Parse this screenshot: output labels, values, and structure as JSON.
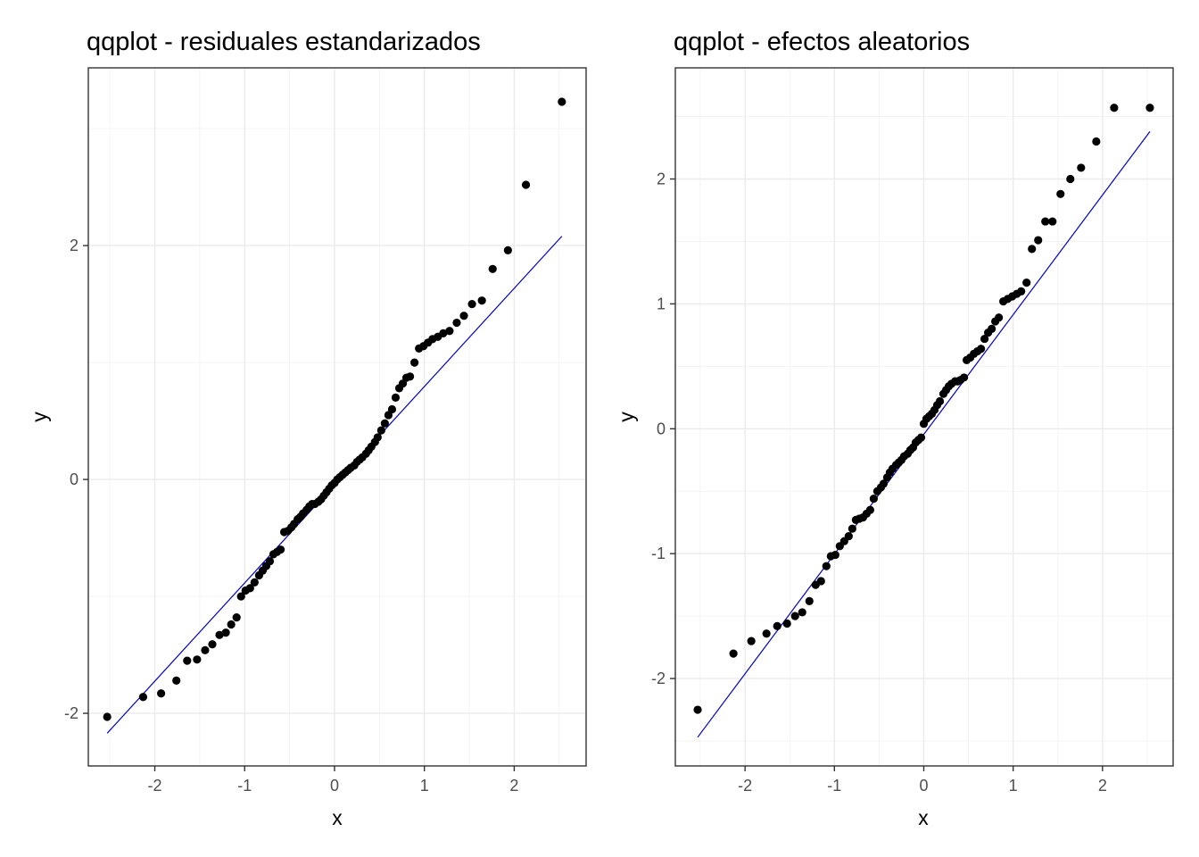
{
  "colors": {
    "point": "#000000",
    "line": "#0000cd"
  },
  "chart_data": [
    {
      "type": "scatter",
      "title": "qqplot - residuales estandarizados",
      "xlabel": "x",
      "ylabel": "y",
      "xlim": [
        -2.74,
        2.8
      ],
      "ylim": [
        -2.45,
        3.52
      ],
      "xticks": [
        -2,
        -1,
        0,
        1,
        2
      ],
      "xtick_labels": [
        "-2",
        "-1",
        "0",
        "1",
        "2"
      ],
      "yticks": [
        -2,
        0,
        2
      ],
      "ytick_labels": [
        "-2",
        "0",
        "2"
      ],
      "grid": true,
      "reference_line": {
        "x": [
          -2.53,
          2.53
        ],
        "y": [
          -2.17,
          2.08
        ]
      },
      "x": [
        -2.53,
        -2.13,
        -1.93,
        -1.76,
        -1.64,
        -1.53,
        -1.44,
        -1.36,
        -1.28,
        -1.21,
        -1.15,
        -1.09,
        -1.04,
        -0.99,
        -0.94,
        -0.89,
        -0.84,
        -0.8,
        -0.76,
        -0.72,
        -0.68,
        -0.64,
        -0.6,
        -0.56,
        -0.52,
        -0.48,
        -0.45,
        -0.41,
        -0.38,
        -0.35,
        -0.31,
        -0.28,
        -0.25,
        -0.22,
        -0.18,
        -0.15,
        -0.12,
        -0.09,
        -0.06,
        -0.03,
        0.0,
        0.03,
        0.06,
        0.09,
        0.12,
        0.15,
        0.18,
        0.22,
        0.25,
        0.28,
        0.31,
        0.35,
        0.38,
        0.41,
        0.45,
        0.48,
        0.52,
        0.56,
        0.6,
        0.64,
        0.68,
        0.72,
        0.76,
        0.8,
        0.84,
        0.89,
        0.94,
        0.99,
        1.04,
        1.09,
        1.15,
        1.21,
        1.28,
        1.36,
        1.44,
        1.53,
        1.64,
        1.76,
        1.93,
        2.13,
        2.53
      ],
      "y": [
        -2.03,
        -1.86,
        -1.83,
        -1.72,
        -1.55,
        -1.54,
        -1.46,
        -1.41,
        -1.33,
        -1.31,
        -1.24,
        -1.18,
        -1.0,
        -0.95,
        -0.93,
        -0.88,
        -0.82,
        -0.78,
        -0.74,
        -0.7,
        -0.64,
        -0.62,
        -0.6,
        -0.45,
        -0.44,
        -0.41,
        -0.38,
        -0.34,
        -0.32,
        -0.29,
        -0.26,
        -0.23,
        -0.21,
        -0.21,
        -0.19,
        -0.17,
        -0.14,
        -0.11,
        -0.08,
        -0.05,
        -0.03,
        0.0,
        0.02,
        0.04,
        0.06,
        0.08,
        0.1,
        0.12,
        0.15,
        0.17,
        0.19,
        0.22,
        0.25,
        0.28,
        0.32,
        0.36,
        0.42,
        0.48,
        0.55,
        0.6,
        0.7,
        0.78,
        0.82,
        0.87,
        0.88,
        1.0,
        1.12,
        1.14,
        1.17,
        1.2,
        1.22,
        1.25,
        1.27,
        1.34,
        1.4,
        1.5,
        1.53,
        1.8,
        1.96,
        2.52,
        3.23
      ]
    },
    {
      "type": "scatter",
      "title": "qqplot - efectos aleatorios",
      "xlabel": "x",
      "ylabel": "y",
      "xlim": [
        -2.78,
        2.79
      ],
      "ylim": [
        -2.7,
        2.89
      ],
      "xticks": [
        -2,
        -1,
        0,
        1,
        2
      ],
      "xtick_labels": [
        "-2",
        "-1",
        "0",
        "1",
        "2"
      ],
      "yticks": [
        -2,
        -1,
        0,
        1,
        2
      ],
      "ytick_labels": [
        "-2",
        "-1",
        "0",
        "1",
        "2"
      ],
      "grid": true,
      "reference_line": {
        "x": [
          -2.53,
          2.53
        ],
        "y": [
          -2.47,
          2.38
        ]
      },
      "x": [
        -2.53,
        -2.13,
        -1.93,
        -1.76,
        -1.64,
        -1.53,
        -1.44,
        -1.36,
        -1.28,
        -1.21,
        -1.15,
        -1.09,
        -1.04,
        -0.99,
        -0.94,
        -0.89,
        -0.84,
        -0.8,
        -0.76,
        -0.72,
        -0.68,
        -0.64,
        -0.6,
        -0.56,
        -0.52,
        -0.48,
        -0.45,
        -0.41,
        -0.38,
        -0.35,
        -0.31,
        -0.28,
        -0.25,
        -0.22,
        -0.18,
        -0.15,
        -0.12,
        -0.09,
        -0.06,
        -0.03,
        0.0,
        0.03,
        0.06,
        0.09,
        0.12,
        0.15,
        0.18,
        0.22,
        0.25,
        0.28,
        0.31,
        0.35,
        0.38,
        0.41,
        0.45,
        0.48,
        0.52,
        0.56,
        0.6,
        0.64,
        0.68,
        0.72,
        0.76,
        0.8,
        0.84,
        0.89,
        0.94,
        0.99,
        1.04,
        1.09,
        1.15,
        1.21,
        1.28,
        1.36,
        1.44,
        1.53,
        1.64,
        1.76,
        1.93,
        2.13,
        2.53
      ],
      "y": [
        -2.25,
        -1.8,
        -1.7,
        -1.64,
        -1.58,
        -1.56,
        -1.5,
        -1.47,
        -1.38,
        -1.25,
        -1.22,
        -1.1,
        -1.02,
        -1.01,
        -0.94,
        -0.9,
        -0.86,
        -0.8,
        -0.73,
        -0.72,
        -0.71,
        -0.68,
        -0.65,
        -0.56,
        -0.5,
        -0.47,
        -0.44,
        -0.39,
        -0.35,
        -0.32,
        -0.29,
        -0.27,
        -0.25,
        -0.22,
        -0.2,
        -0.17,
        -0.15,
        -0.11,
        -0.09,
        -0.07,
        0.04,
        0.08,
        0.1,
        0.12,
        0.15,
        0.19,
        0.22,
        0.28,
        0.31,
        0.34,
        0.36,
        0.38,
        0.38,
        0.39,
        0.41,
        0.55,
        0.57,
        0.6,
        0.62,
        0.64,
        0.72,
        0.77,
        0.8,
        0.86,
        0.89,
        1.02,
        1.04,
        1.06,
        1.08,
        1.1,
        1.17,
        1.44,
        1.51,
        1.66,
        1.66,
        1.88,
        2.0,
        2.09,
        2.3,
        2.57,
        2.57
      ]
    }
  ]
}
